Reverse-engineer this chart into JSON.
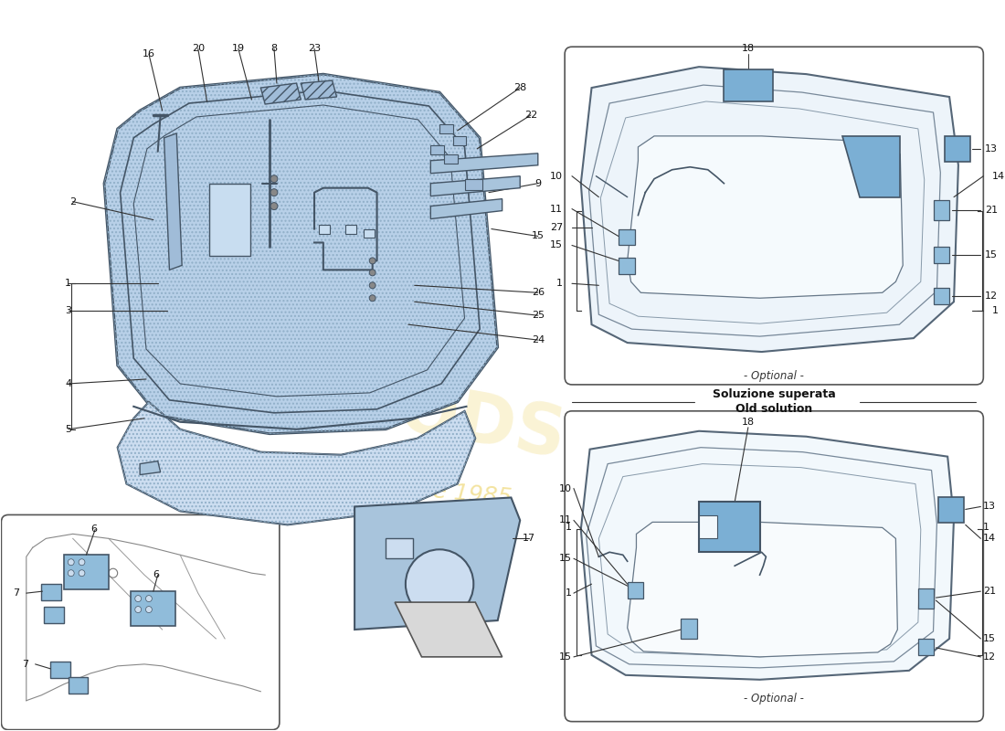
{
  "bg_color": "#ffffff",
  "blue_fill": "#b8d0e8",
  "blue_light": "#ccddf0",
  "blue_mid": "#a0bcd8",
  "panel_blue": "#a8c4dc",
  "outline": "#445566",
  "label_col": "#111111",
  "line_col": "#333333",
  "wm_col": "#e8c840",
  "optional_label": "- Optional -",
  "old_sol_line1": "Soluzione superata",
  "old_sol_line2": "Old solution"
}
